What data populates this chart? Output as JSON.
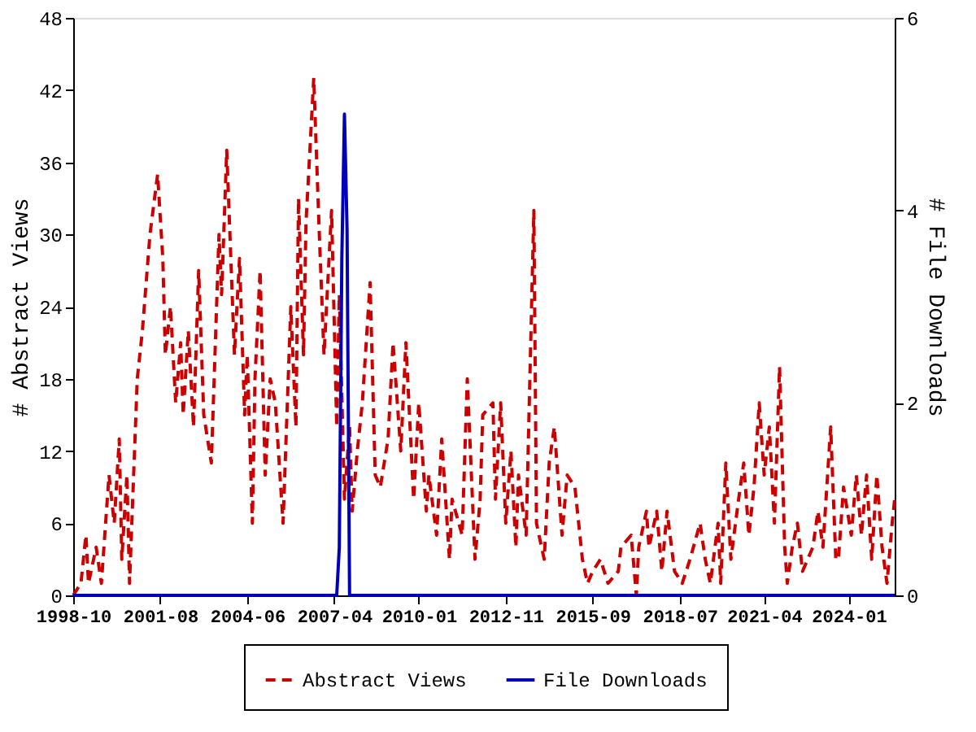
{
  "chart_data": {
    "type": "line",
    "ylabel": "# Abstract Views",
    "y2label": "# File Downloads",
    "xlim": [
      "1998-10",
      "2025-07"
    ],
    "xticks": [
      "1998-10",
      "2001-08",
      "2004-06",
      "2007-04",
      "2010-01",
      "2012-11",
      "2015-09",
      "2018-07",
      "2021-04",
      "2024-01"
    ],
    "ylim": [
      0,
      48
    ],
    "yticks": [
      0,
      6,
      12,
      18,
      24,
      30,
      36,
      42,
      48
    ],
    "y2lim": [
      0,
      6
    ],
    "y2ticks": [
      0,
      2,
      4,
      6
    ],
    "grid": false,
    "legend": "bottom",
    "marker": "none",
    "series": [
      {
        "name": "Abstract Views",
        "color": "#cc0000",
        "line_style": "dashed",
        "x": [
          "1998-10",
          "1999-01",
          "1999-03",
          "1999-04",
          "1999-07",
          "1999-09",
          "1999-12",
          "2000-02",
          "2000-04",
          "2000-05",
          "2000-07",
          "2000-08",
          "2000-11",
          "2001-01",
          "2001-04",
          "2001-07",
          "2001-09",
          "2001-10",
          "2001-12",
          "2002-02",
          "2002-04",
          "2002-05",
          "2002-07",
          "2002-09",
          "2002-11",
          "2003-01",
          "2003-04",
          "2003-07",
          "2003-08",
          "2003-10",
          "2004-01",
          "2004-03",
          "2004-05",
          "2004-06",
          "2004-08",
          "2004-09",
          "2004-11",
          "2005-01",
          "2005-03",
          "2005-05",
          "2005-08",
          "2005-11",
          "2006-01",
          "2006-02",
          "2006-04",
          "2006-05",
          "2006-08",
          "2006-10",
          "2006-12",
          "2007-03",
          "2007-05",
          "2007-06",
          "2007-08",
          "2007-10",
          "2007-11",
          "2008-01",
          "2008-03",
          "2008-06",
          "2008-08",
          "2008-10",
          "2009-01",
          "2009-03",
          "2009-06",
          "2009-08",
          "2009-11",
          "2010-01",
          "2010-04",
          "2010-05",
          "2010-08",
          "2010-10",
          "2011-01",
          "2011-02",
          "2011-06",
          "2011-08",
          "2011-11",
          "2012-01",
          "2012-02",
          "2012-06",
          "2012-07",
          "2012-09",
          "2012-11",
          "2013-01",
          "2013-03",
          "2013-04",
          "2013-07",
          "2013-10",
          "2013-11",
          "2013-12",
          "2014-02",
          "2014-04",
          "2014-06",
          "2014-09",
          "2014-11",
          "2015-02",
          "2015-05",
          "2015-07",
          "2015-09",
          "2015-12",
          "2016-03",
          "2016-07",
          "2016-08",
          "2016-12",
          "2017-02",
          "2017-03",
          "2017-06",
          "2017-07",
          "2017-10",
          "2017-12",
          "2018-02",
          "2018-05",
          "2018-08",
          "2018-11",
          "2019-03",
          "2019-05",
          "2019-07",
          "2019-10",
          "2019-11",
          "2020-01",
          "2020-03",
          "2020-06",
          "2020-08",
          "2020-10",
          "2020-12",
          "2021-02",
          "2021-04",
          "2021-06",
          "2021-08",
          "2021-10",
          "2021-12",
          "2022-01",
          "2022-03",
          "2022-05",
          "2022-07",
          "2022-09",
          "2022-11",
          "2023-01",
          "2023-03",
          "2023-06",
          "2023-08",
          "2023-09",
          "2023-11",
          "2024-02",
          "2024-04",
          "2024-06",
          "2024-08",
          "2024-10",
          "2024-12",
          "2025-02",
          "2025-04",
          "2025-06",
          "2025-07"
        ],
        "values": [
          0,
          1,
          5,
          1,
          4,
          1,
          10,
          6,
          13,
          3,
          10,
          1,
          18,
          22,
          30,
          35,
          28,
          20,
          24,
          16,
          21,
          15,
          22,
          14,
          27,
          15,
          11,
          30,
          25,
          37,
          20,
          28,
          15,
          20,
          6,
          18,
          27,
          10,
          18,
          16,
          6,
          24,
          14,
          33,
          20,
          31,
          43,
          31,
          20,
          32,
          14,
          25,
          8,
          14,
          7,
          12,
          16,
          26,
          10,
          9,
          13,
          21,
          12,
          21,
          8,
          16,
          7,
          10,
          5,
          13,
          3,
          8,
          5,
          18,
          3,
          8,
          15,
          16,
          8,
          16,
          6,
          12,
          4,
          10,
          5,
          32,
          6,
          5,
          3,
          11,
          14,
          5,
          10,
          9,
          3,
          1,
          2,
          3,
          1,
          2,
          4,
          5,
          0,
          4,
          7,
          4,
          7,
          2,
          7,
          2,
          1,
          3,
          6,
          3,
          1,
          6,
          1,
          11,
          3,
          8,
          11,
          5,
          9,
          16,
          10,
          14,
          6,
          19,
          4,
          1,
          4,
          6,
          2,
          3,
          4,
          7,
          4,
          14,
          3,
          3,
          9,
          5,
          10,
          5,
          10,
          3,
          10,
          4,
          1,
          6,
          8
        ]
      },
      {
        "name": "File Downloads",
        "color": "#0000bb",
        "line_style": "solid",
        "axis": "y2",
        "x": [
          "1998-10",
          "2007-05",
          "2007-06",
          "2007-07",
          "2007-08",
          "2007-09",
          "2007-10",
          "2025-07"
        ],
        "values": [
          0,
          0,
          0.5,
          3.5,
          5,
          3.8,
          0,
          0
        ]
      }
    ]
  }
}
